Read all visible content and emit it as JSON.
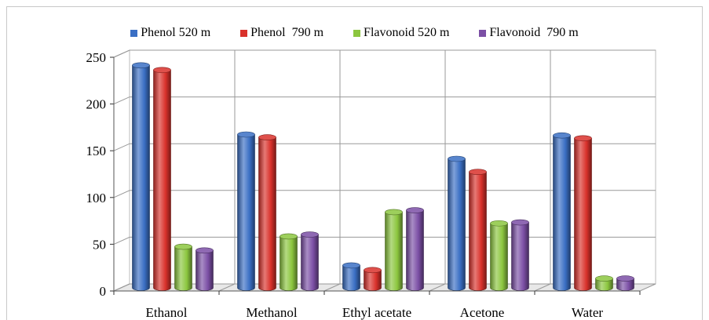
{
  "chart_data": {
    "type": "bar",
    "categories": [
      "Ethanol",
      "Methanol",
      "Ethyl acetate",
      "Acetone",
      "Water"
    ],
    "series": [
      {
        "name": "Phenol 520 m",
        "values": [
          238,
          164,
          24,
          138,
          163
        ],
        "color": "#3a6fc4"
      },
      {
        "name": "Phenol  790 m",
        "values": [
          233,
          161,
          19,
          124,
          160
        ],
        "color": "#d9312b"
      },
      {
        "name": "Flavonoid 520 m",
        "values": [
          44,
          55,
          81,
          69,
          10
        ],
        "color": "#8cc63f"
      },
      {
        "name": "Flavonoid  790 m",
        "values": [
          40,
          57,
          83,
          70,
          10
        ],
        "color": "#7b4fa5"
      }
    ],
    "yticks": [
      "0",
      "50",
      "100",
      "150",
      "200",
      "250"
    ],
    "ylim": [
      0,
      250
    ],
    "grid": true,
    "legend_position": "top",
    "three_d": true
  }
}
